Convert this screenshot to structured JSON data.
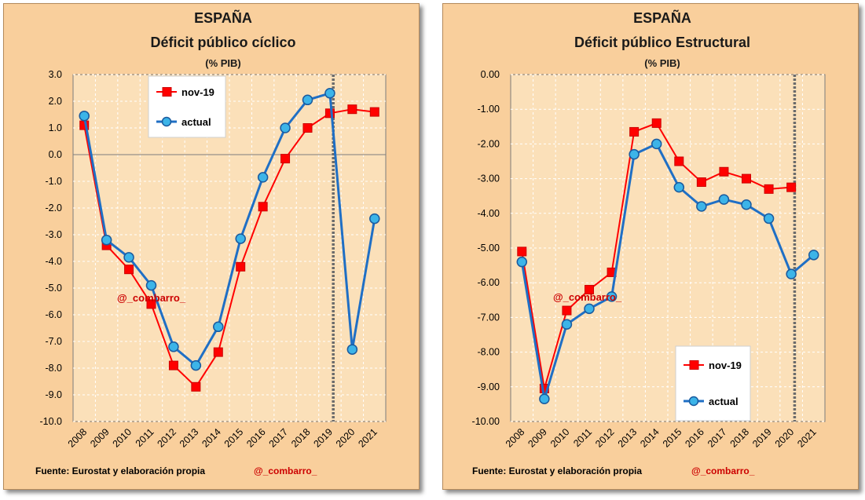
{
  "chart_data": [
    {
      "type": "line",
      "country": "ESPAÑA",
      "title": "Déficit público cíclico",
      "subtitle": "(% PIB)",
      "categories": [
        "2008",
        "2009",
        "2010",
        "2011",
        "2012",
        "2013",
        "2014",
        "2015",
        "2016",
        "2017",
        "2018",
        "2019",
        "2020",
        "2021"
      ],
      "ylim": [
        -10,
        3
      ],
      "yticks": [
        "3.0",
        "2.0",
        "1.0",
        "0.0",
        "-1.0",
        "-2.0",
        "-3.0",
        "-4.0",
        "-5.0",
        "-6.0",
        "-7.0",
        "-8.0",
        "-9.0",
        "-10.0"
      ],
      "ytick_values": [
        3,
        2,
        1,
        0,
        -1,
        -2,
        -3,
        -4,
        -5,
        -6,
        -7,
        -8,
        -9,
        -10
      ],
      "cutoff_category": "2019",
      "legend_placement": "top-left",
      "series": [
        {
          "name": "nov-19",
          "color": "#ff0000",
          "marker": "square",
          "values": [
            1.1,
            -3.4,
            -4.3,
            -5.6,
            -7.9,
            -8.7,
            -7.4,
            -4.2,
            -1.95,
            -0.15,
            1.0,
            1.55,
            1.7,
            1.6
          ]
        },
        {
          "name": "actual",
          "color": "#1f6fc5",
          "marker": "circle",
          "values": [
            1.45,
            -3.2,
            -3.85,
            -4.9,
            -7.2,
            -7.9,
            -6.45,
            -3.15,
            -0.85,
            1.0,
            2.05,
            2.3,
            -7.3,
            -2.4
          ]
        }
      ],
      "watermark": "@_combarro_",
      "source": "Fuente: Eurostat y elaboración propia",
      "signature": "@_combarro_"
    },
    {
      "type": "line",
      "country": "ESPAÑA",
      "title": "Déficit público Estructural",
      "subtitle": "(% PIB)",
      "categories": [
        "2008",
        "2009",
        "2010",
        "2011",
        "2012",
        "2013",
        "2014",
        "2015",
        "2016",
        "2017",
        "2018",
        "2019",
        "2020",
        "2021"
      ],
      "ylim": [
        -10,
        0
      ],
      "yticks": [
        "0.00",
        "-1.00",
        "-2.00",
        "-3.00",
        "-4.00",
        "-5.00",
        "-6.00",
        "-7.00",
        "-8.00",
        "-9.00",
        "-10.00"
      ],
      "ytick_values": [
        0,
        -1,
        -2,
        -3,
        -4,
        -5,
        -6,
        -7,
        -8,
        -9,
        -10
      ],
      "cutoff_category": "2020",
      "legend_placement": "bottom-right",
      "series": [
        {
          "name": "nov-19",
          "color": "#ff0000",
          "marker": "square",
          "values": [
            -5.1,
            -9.05,
            -6.8,
            -6.2,
            -5.7,
            -1.65,
            -1.4,
            -2.5,
            -3.1,
            -2.8,
            -3.0,
            -3.3,
            -3.25,
            null
          ]
        },
        {
          "name": "actual",
          "color": "#1f6fc5",
          "marker": "circle",
          "values": [
            -5.4,
            -9.35,
            -7.2,
            -6.75,
            -6.4,
            -2.3,
            -2.0,
            -3.25,
            -3.8,
            -3.6,
            -3.75,
            -4.15,
            -5.75,
            -5.2
          ]
        }
      ],
      "watermark": "@_combarro_",
      "source": "Fuente: Eurostat y elaboración propia",
      "signature": "@_combarro_"
    }
  ]
}
